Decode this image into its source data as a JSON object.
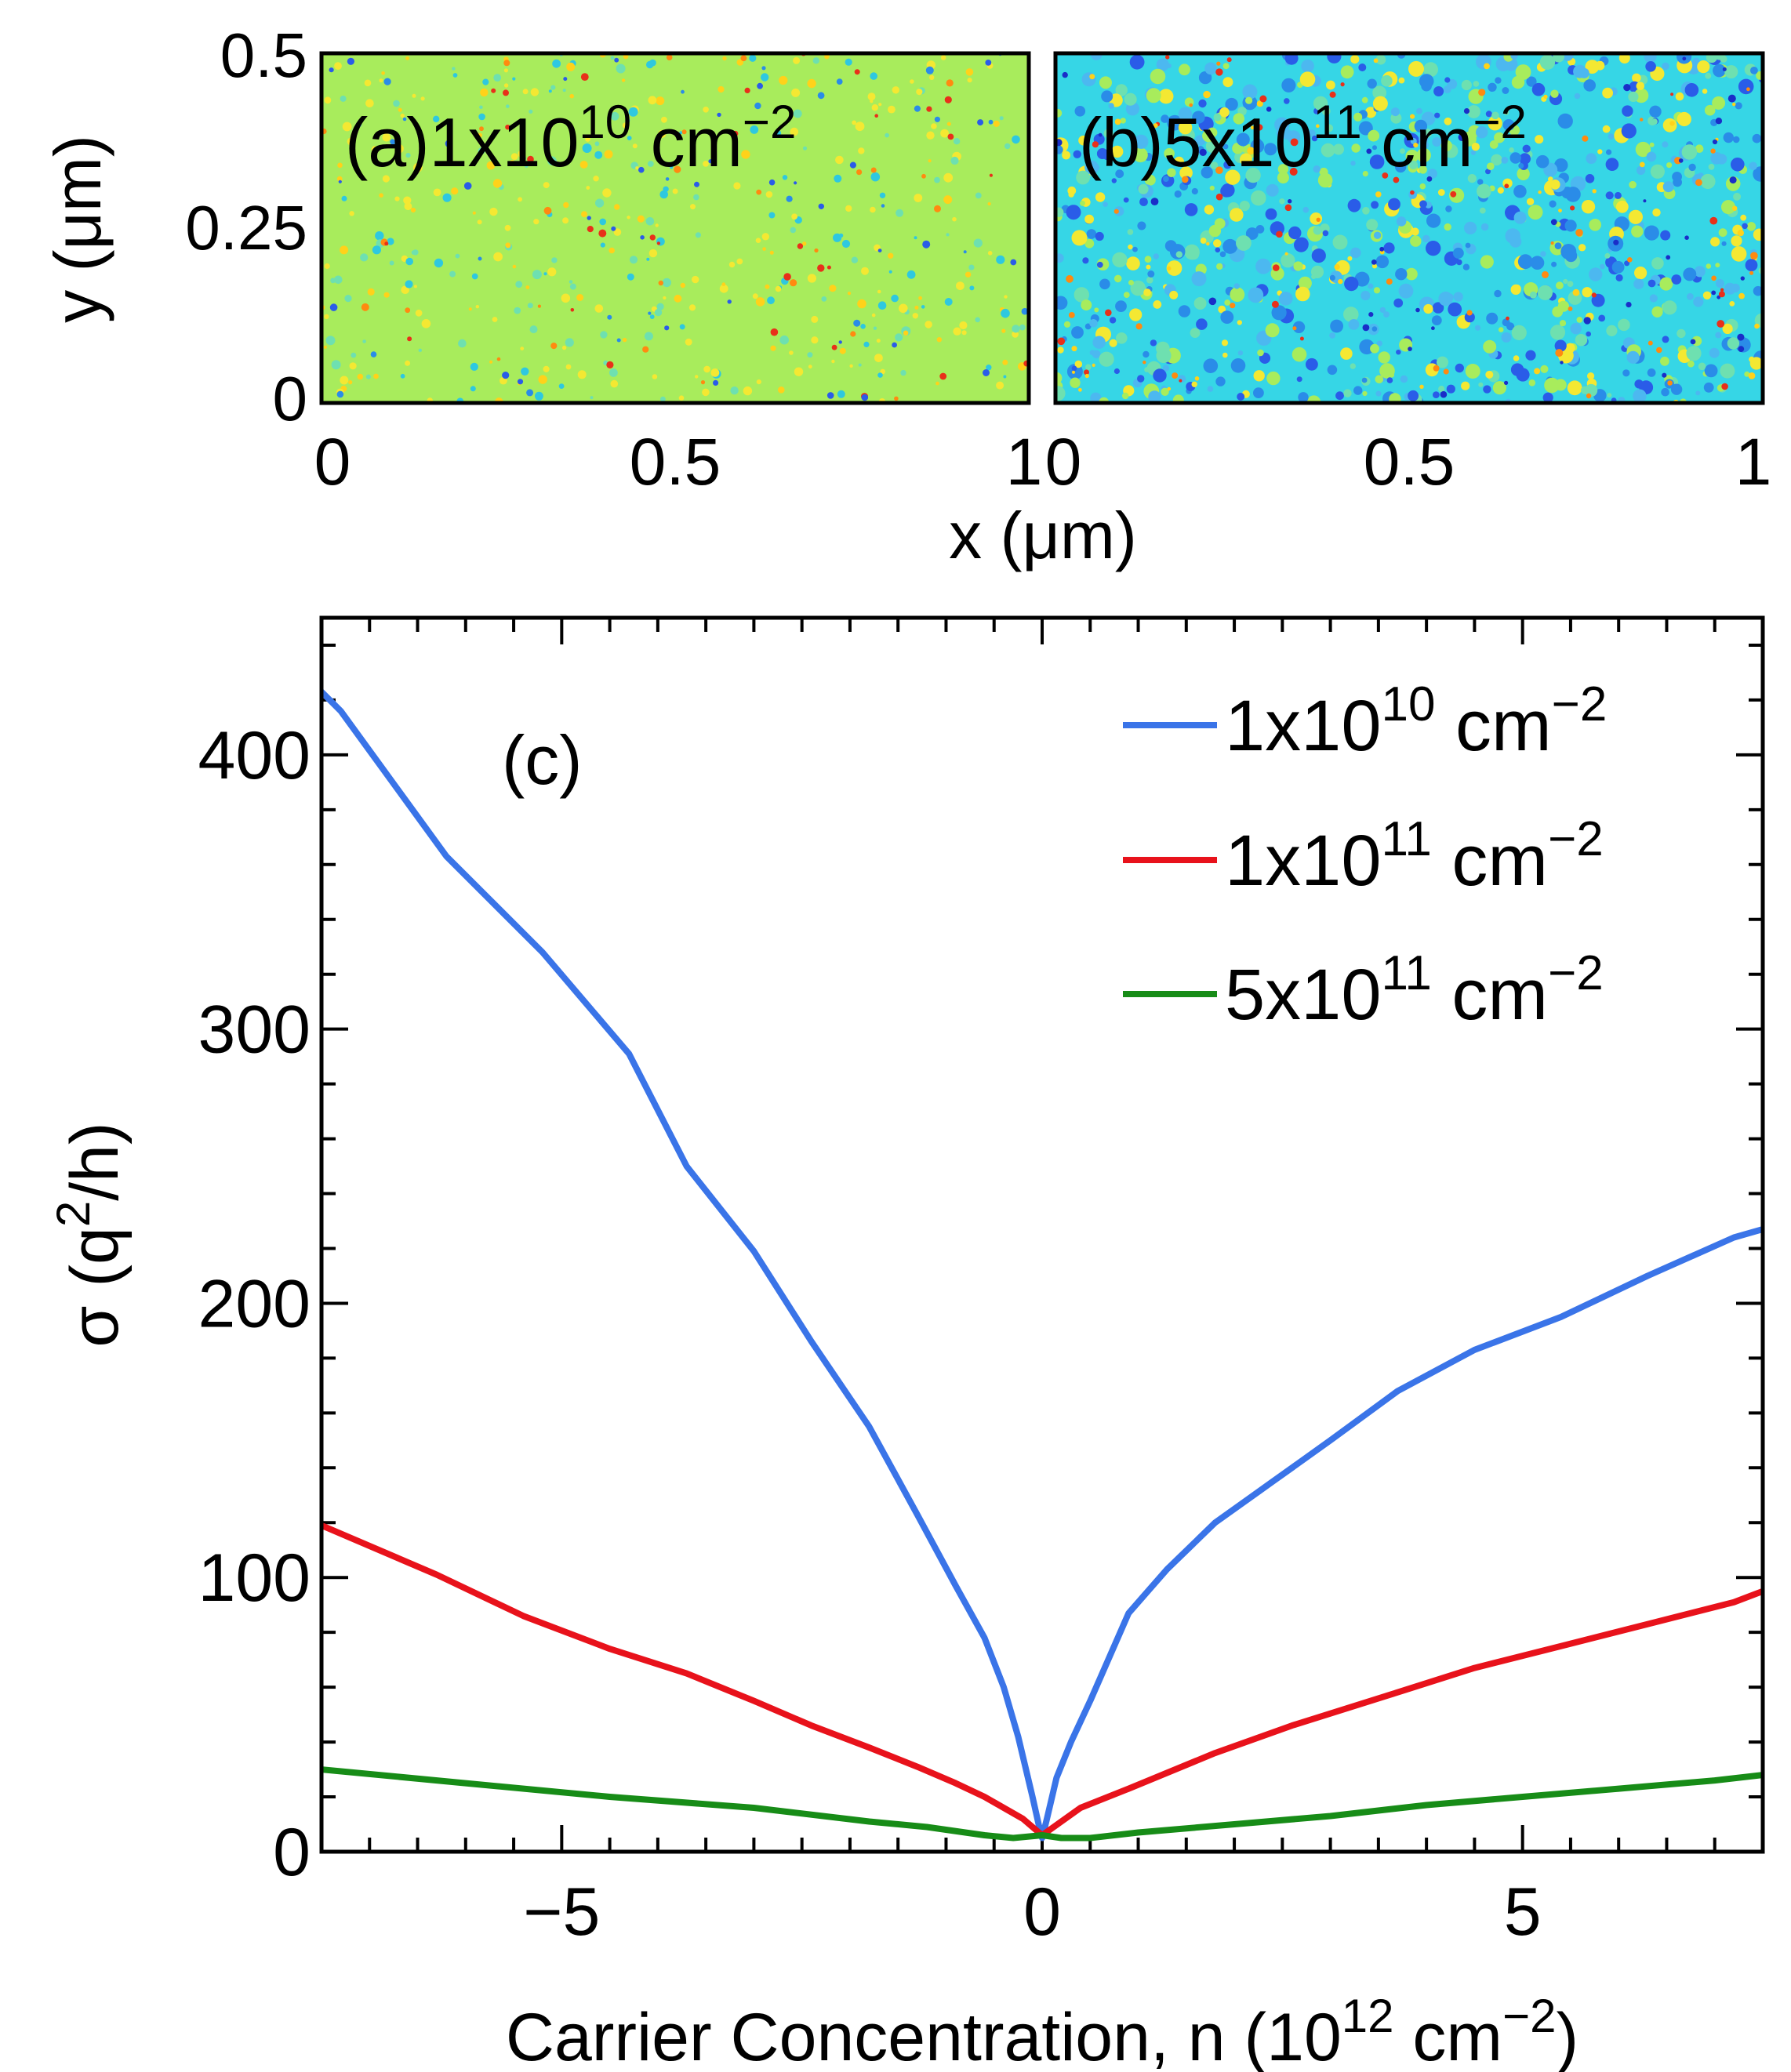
{
  "top_panels": {
    "x_axis_label": "x (μm)",
    "y_axis_label": "y (μm)",
    "y_ticks": [
      "0.5",
      "0.25",
      "0"
    ],
    "x_ticks": [
      "0",
      "0.5",
      "1"
    ],
    "panels": [
      {
        "id": "a",
        "label": "(a)",
        "base": "1x10",
        "exp": "10",
        "unit": "cm",
        "unit_exp": "−2",
        "kind": "sparse"
      },
      {
        "id": "b",
        "label": "(b)",
        "base": "5x10",
        "exp": "11",
        "unit": "cm",
        "unit_exp": "−2",
        "kind": "dense"
      }
    ]
  },
  "chart_data": {
    "type": "line",
    "panel_label": "(c)",
    "xlabel_prefix": "Carrier Concentration, n (10",
    "xlabel_exp": "12",
    "xlabel_suffix": " cm",
    "xlabel_suffix_exp": "−2",
    "xlabel_close": ")",
    "ylabel_prefix": "σ (q",
    "ylabel_exp": "2",
    "ylabel_suffix": "/h)",
    "xlim": [
      -7.5,
      7.5
    ],
    "ylim": [
      0,
      450
    ],
    "xticks": [
      -5,
      0,
      5
    ],
    "xtick_labels": [
      "−5",
      "0",
      "5"
    ],
    "yticks": [
      0,
      100,
      200,
      300,
      400
    ],
    "ytick_labels": [
      "0",
      "100",
      "200",
      "300",
      "400"
    ],
    "legend_position": "top-right",
    "series": [
      {
        "name": "1x10^10 cm^-2",
        "base": "1x10",
        "exp": "10",
        "unit": " cm",
        "unit_exp": "−2",
        "color": "#3a74e8",
        "x": [
          -7.5,
          -7.3,
          -6.2,
          -5.2,
          -4.3,
          -3.7,
          -3.0,
          -2.4,
          -1.8,
          -1.3,
          -0.9,
          -0.6,
          -0.4,
          -0.25,
          -0.1,
          -0.03,
          0.0,
          0.05,
          0.15,
          0.3,
          0.5,
          0.9,
          1.3,
          1.8,
          2.4,
          3.0,
          3.7,
          4.5,
          5.4,
          6.3,
          7.2,
          7.5
        ],
        "y": [
          423,
          416,
          363,
          328,
          291,
          250,
          219,
          186,
          155,
          123,
          97,
          78,
          60,
          42,
          20,
          9,
          5,
          12,
          27,
          40,
          55,
          87,
          103,
          120,
          135,
          150,
          168,
          183,
          195,
          210,
          224,
          227
        ]
      },
      {
        "name": "1x10^11 cm^-2",
        "base": "1x10",
        "exp": "11",
        "unit": " cm",
        "unit_exp": "−2",
        "color": "#e8121b",
        "x": [
          -7.5,
          -6.3,
          -5.4,
          -4.5,
          -3.7,
          -3.0,
          -2.4,
          -1.8,
          -1.3,
          -0.9,
          -0.6,
          -0.4,
          -0.2,
          0.0,
          0.2,
          0.4,
          0.9,
          1.8,
          2.6,
          3.6,
          4.5,
          5.4,
          6.3,
          7.2,
          7.5
        ],
        "y": [
          119,
          101,
          86,
          74,
          65,
          55,
          46,
          38,
          31,
          25,
          20,
          16,
          12,
          6,
          11,
          16,
          23,
          36,
          46,
          57,
          67,
          75,
          83,
          91,
          95
        ]
      },
      {
        "name": "5x10^11 cm^-2",
        "base": "5x10",
        "exp": "11",
        "unit": " cm",
        "unit_exp": "−2",
        "color": "#178c17",
        "x": [
          -7.5,
          -6.0,
          -4.5,
          -3.0,
          -1.8,
          -1.2,
          -0.6,
          -0.3,
          0.0,
          0.2,
          0.5,
          1.0,
          2.0,
          3.0,
          4.0,
          5.0,
          6.0,
          7.0,
          7.5
        ],
        "y": [
          30,
          25,
          20,
          16,
          11,
          9,
          6,
          5,
          6,
          5,
          5,
          7,
          10,
          13,
          17,
          20,
          23,
          26,
          28
        ]
      }
    ]
  }
}
